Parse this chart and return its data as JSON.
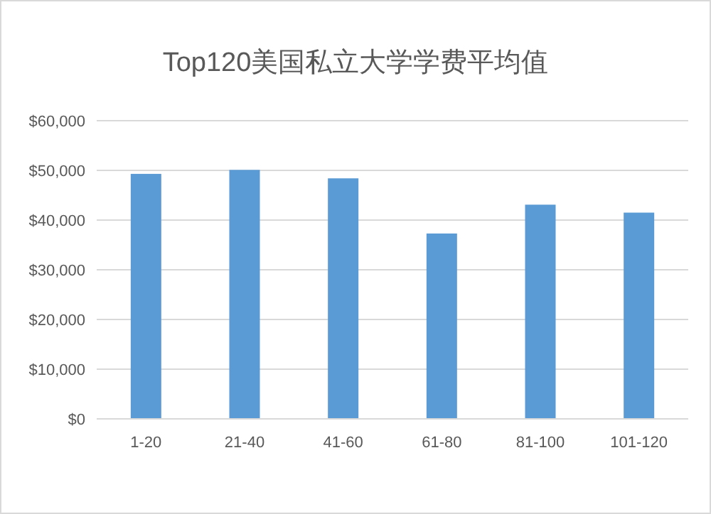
{
  "chart_data": {
    "type": "bar",
    "title": "Top120美国私立大学学费平均值",
    "categories": [
      "1-20",
      "21-40",
      "41-60",
      "61-80",
      "81-100",
      "101-120"
    ],
    "values": [
      49300,
      50100,
      48400,
      37300,
      43100,
      41500
    ],
    "color": "#5b9bd5",
    "ylim": [
      0,
      60000
    ],
    "yticks": [
      {
        "value": 0,
        "label": "$0"
      },
      {
        "value": 10000,
        "label": "$10,000"
      },
      {
        "value": 20000,
        "label": "$20,000"
      },
      {
        "value": 30000,
        "label": "$30,000"
      },
      {
        "value": 40000,
        "label": "$40,000"
      },
      {
        "value": 50000,
        "label": "$50,000"
      },
      {
        "value": 60000,
        "label": "$60,000"
      }
    ],
    "grid": "y"
  }
}
